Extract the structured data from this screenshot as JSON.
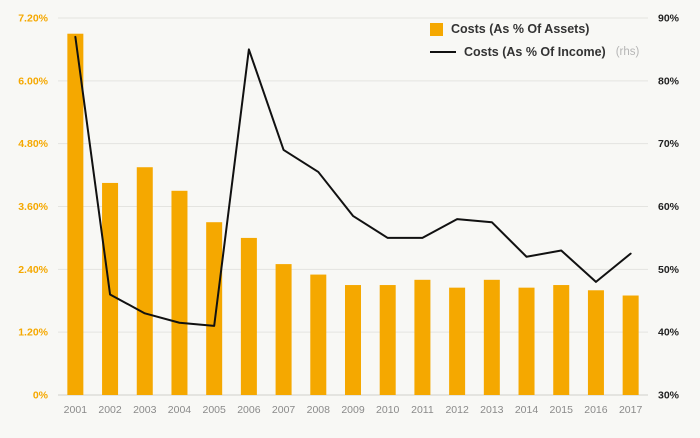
{
  "chart_data": {
    "type": "bar",
    "subtype": "combo-bar-line",
    "title": "",
    "categories": [
      "2001",
      "2002",
      "2003",
      "2004",
      "2005",
      "2006",
      "2007",
      "2008",
      "2009",
      "2010",
      "2011",
      "2012",
      "2013",
      "2014",
      "2015",
      "2016",
      "2017"
    ],
    "series": [
      {
        "name": "Costs (As % Of Assets)",
        "type": "bar",
        "axis": "left",
        "color": "#F5A800",
        "values": [
          6.9,
          4.05,
          4.35,
          3.9,
          3.3,
          3.0,
          2.5,
          2.3,
          2.1,
          2.1,
          2.2,
          2.05,
          2.2,
          2.05,
          2.1,
          2.0,
          1.9
        ]
      },
      {
        "name": "Costs (As % Of Income)",
        "suffix": "(rhs)",
        "type": "line",
        "axis": "right",
        "color": "#111111",
        "values": [
          87,
          46,
          43,
          41.5,
          41,
          85,
          69,
          65.5,
          58.5,
          55,
          55,
          58,
          57.5,
          52,
          53,
          48,
          52.5
        ]
      }
    ],
    "left_axis": {
      "min": 0,
      "max": 7.2,
      "tick_values": [
        0,
        1.2,
        2.4,
        3.6,
        4.8,
        6.0,
        7.2
      ],
      "ticks": [
        "0%",
        "1.20%",
        "2.40%",
        "3.60%",
        "4.80%",
        "6.00%",
        "7.20%"
      ],
      "color": "#F5A800"
    },
    "right_axis": {
      "min": 30,
      "max": 90,
      "tick_values": [
        30,
        40,
        50,
        60,
        70,
        80,
        90
      ],
      "ticks": [
        "30%",
        "40%",
        "50%",
        "60%",
        "70%",
        "80%",
        "90%"
      ],
      "color": "#222222"
    },
    "x_label_color": "#8a8a8a",
    "grid": true,
    "legend_position": "top-right",
    "background": "#f8f8f5"
  }
}
